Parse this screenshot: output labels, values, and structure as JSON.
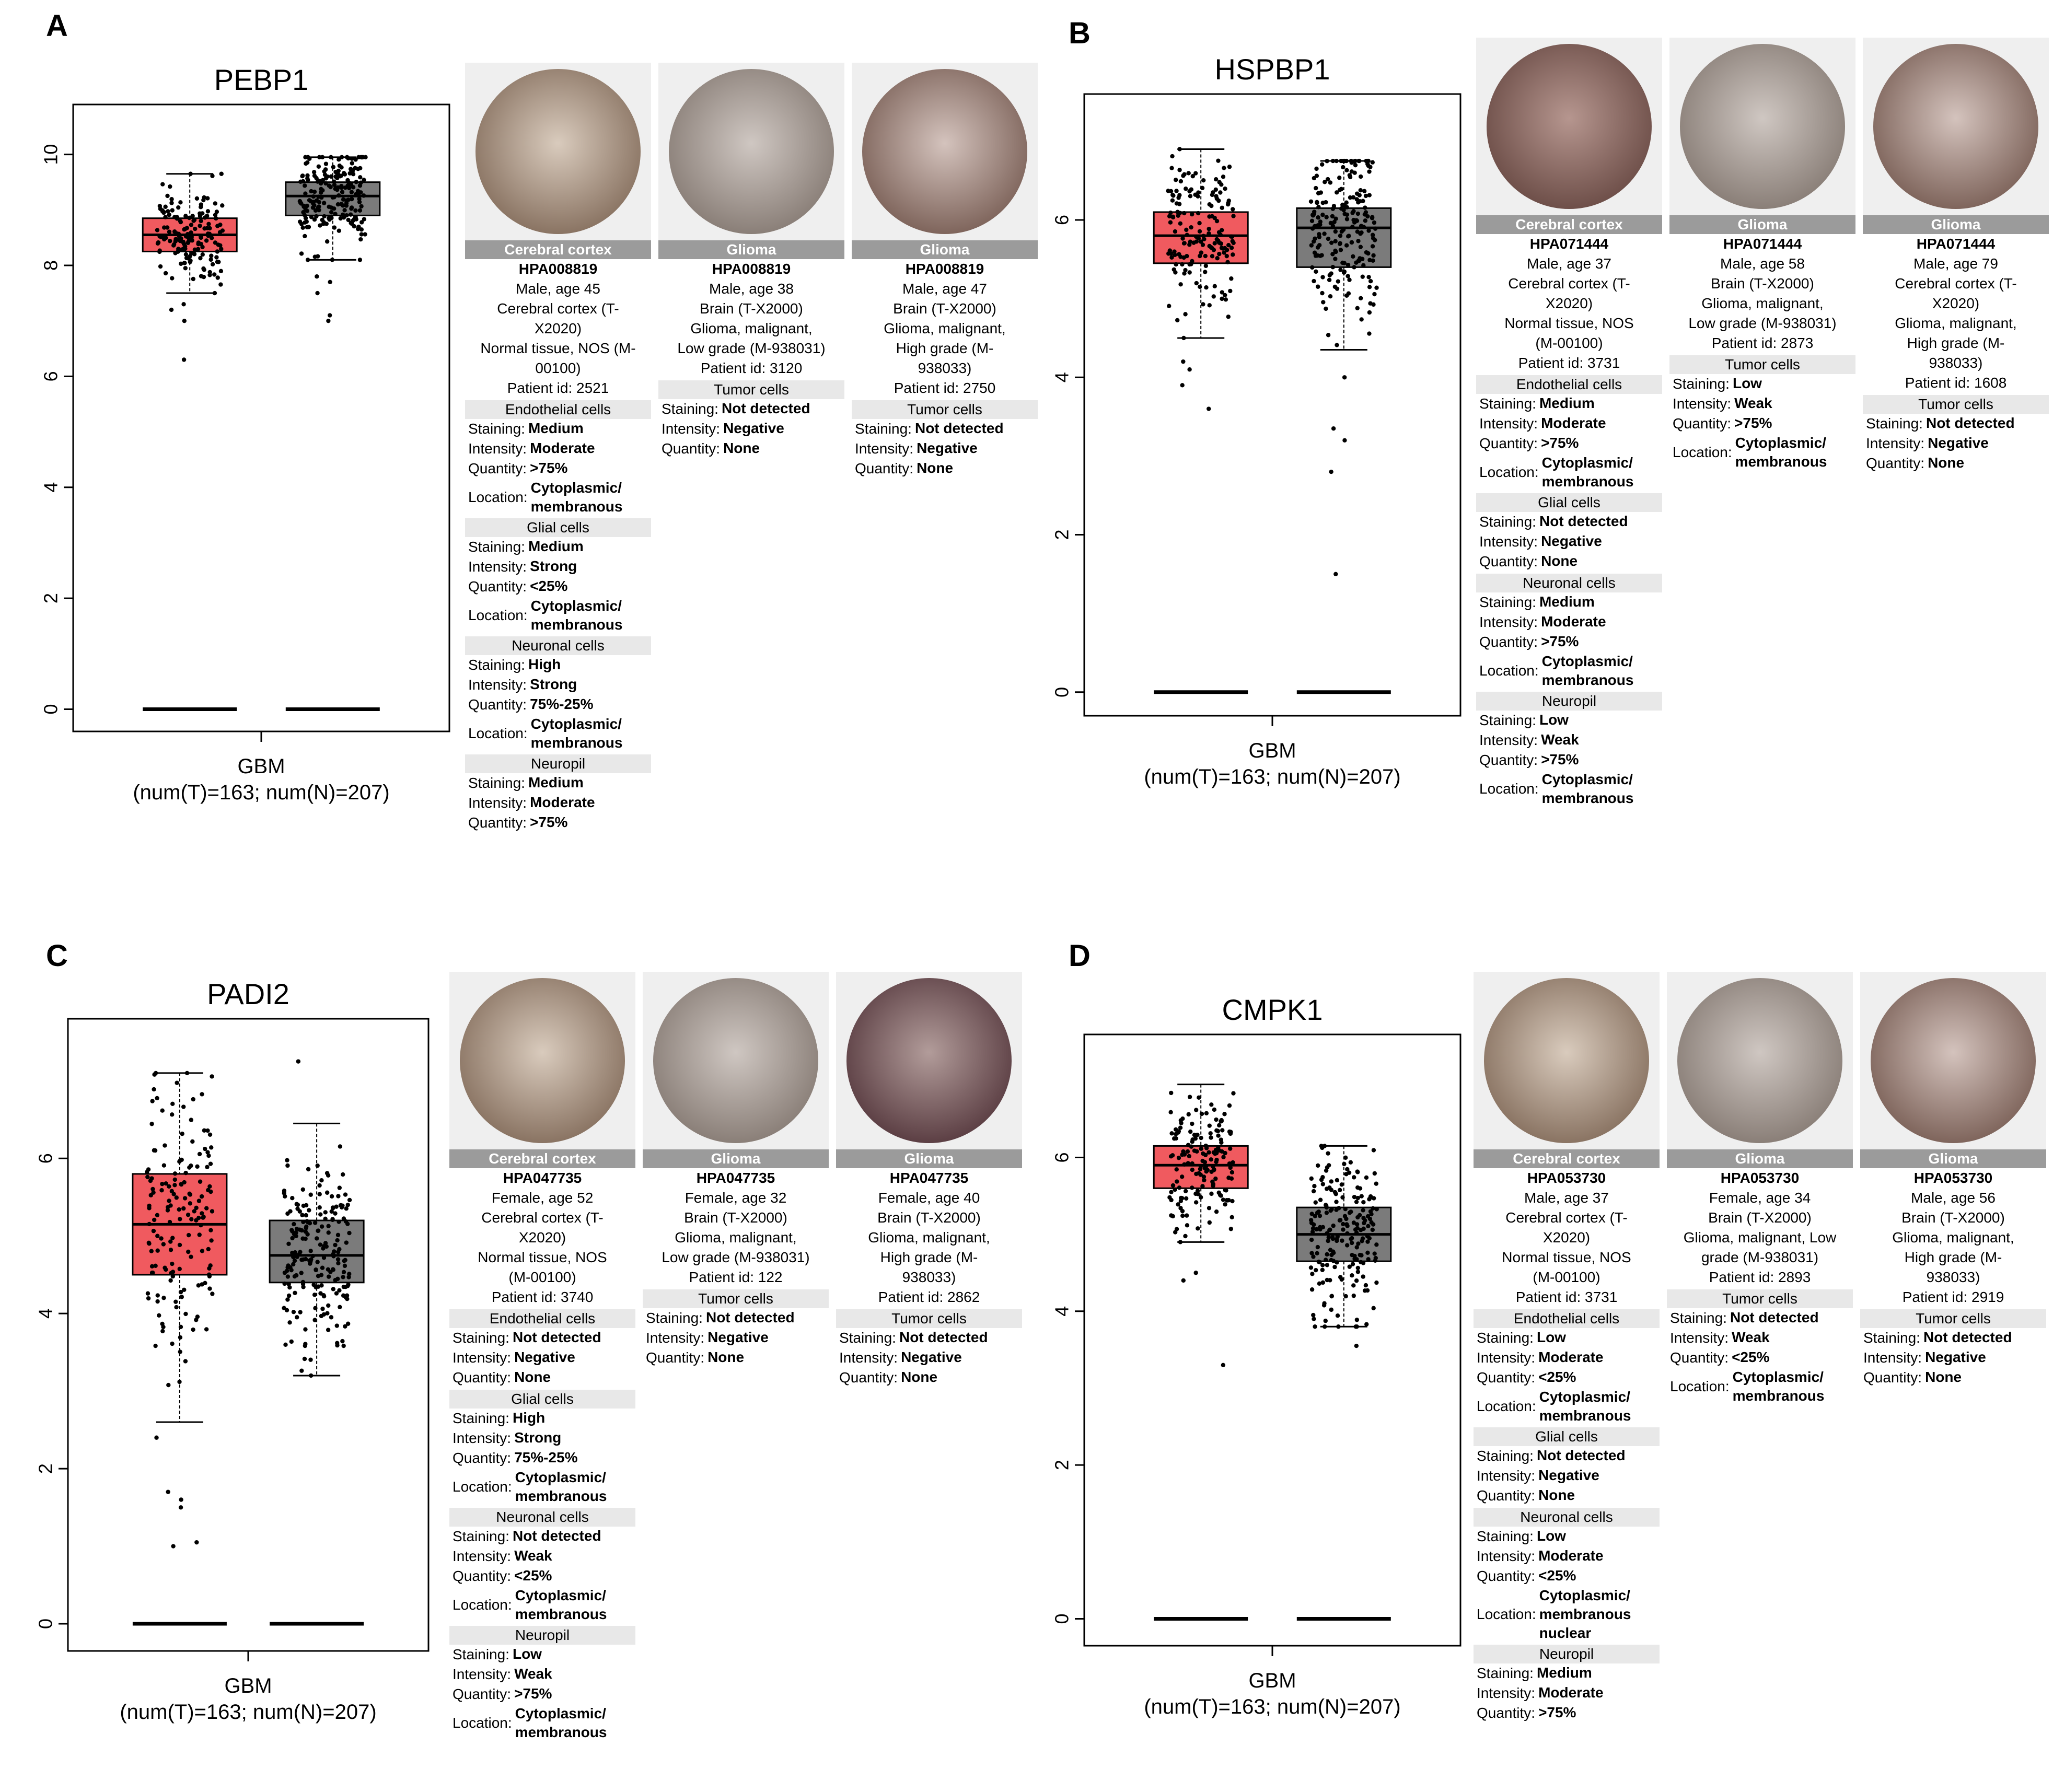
{
  "colors": {
    "tumor_box": "#f05a5f",
    "normal_box": "#7b7b7b",
    "banner": "#9b9b9b"
  },
  "panels": [
    {
      "id": "A",
      "label": "A",
      "gene": "PEBP1",
      "xlabel": "GBM",
      "xsub": "(num(T)=163; num(N)=207)",
      "yticks": [
        "0",
        "2",
        "4",
        "6",
        "8",
        "10"
      ],
      "tissue_images": [
        {
          "tissue": "Cerebral cortex",
          "antibody": "HPA008819",
          "meta": [
            "Male, age 45",
            "Cerebral cortex (T-",
            "X2020)",
            "Normal tissue, NOS (M-",
            "00100)",
            "Patient id: 2521"
          ],
          "cell_groups": [
            {
              "name": "Endothelial cells",
              "rows": [
                [
                  "Staining:",
                  "Medium"
                ],
                [
                  "Intensity:",
                  "Moderate"
                ],
                [
                  "Quantity:",
                  ">75%"
                ],
                [
                  "Location:",
                  "Cytoplasmic/ membranous"
                ]
              ]
            },
            {
              "name": "Glial cells",
              "rows": [
                [
                  "Staining:",
                  "Medium"
                ],
                [
                  "Intensity:",
                  "Strong"
                ],
                [
                  "Quantity:",
                  "<25%"
                ],
                [
                  "Location:",
                  "Cytoplasmic/ membranous"
                ]
              ]
            },
            {
              "name": "Neuronal cells",
              "rows": [
                [
                  "Staining:",
                  "High"
                ],
                [
                  "Intensity:",
                  "Strong"
                ],
                [
                  "Quantity:",
                  "75%-25%"
                ],
                [
                  "Location:",
                  "Cytoplasmic/ membranous"
                ]
              ]
            },
            {
              "name": "Neuropil",
              "rows": [
                [
                  "Staining:",
                  "Medium"
                ],
                [
                  "Intensity:",
                  "Moderate"
                ],
                [
                  "Quantity:",
                  ">75%"
                ]
              ]
            }
          ]
        },
        {
          "tissue": "Glioma",
          "antibody": "HPA008819",
          "meta": [
            "Male, age 38",
            "Brain (T-X2000)",
            "Glioma, malignant,",
            "Low grade (M-938031)",
            "Patient id: 3120"
          ],
          "cell_groups": [
            {
              "name": "Tumor cells",
              "rows": [
                [
                  "Staining:",
                  "Not detected"
                ],
                [
                  "Intensity:",
                  "Negative"
                ],
                [
                  "Quantity:",
                  "None"
                ]
              ]
            }
          ]
        },
        {
          "tissue": "Glioma",
          "antibody": "HPA008819",
          "meta": [
            "Male, age 47",
            "Brain (T-X2000)",
            "Glioma, malignant,",
            "High grade (M-",
            "938033)",
            "Patient id: 2750"
          ],
          "cell_groups": [
            {
              "name": "Tumor cells",
              "rows": [
                [
                  "Staining:",
                  "Not detected"
                ],
                [
                  "Intensity:",
                  "Negative"
                ],
                [
                  "Quantity:",
                  "None"
                ]
              ]
            }
          ]
        }
      ]
    },
    {
      "id": "B",
      "label": "B",
      "gene": "HSPBP1",
      "xlabel": "GBM",
      "xsub": "(num(T)=163; num(N)=207)",
      "yticks": [
        "0",
        "2",
        "4",
        "6"
      ],
      "tissue_images": [
        {
          "tissue": "Cerebral cortex",
          "antibody": "HPA071444",
          "meta": [
            "Male, age 37",
            "Cerebral cortex (T-",
            "X2020)",
            "Normal tissue, NOS",
            "(M-00100)",
            "Patient id: 3731"
          ],
          "cell_groups": [
            {
              "name": "Endothelial cells",
              "rows": [
                [
                  "Staining:",
                  "Medium"
                ],
                [
                  "Intensity:",
                  "Moderate"
                ],
                [
                  "Quantity:",
                  ">75%"
                ],
                [
                  "Location:",
                  "Cytoplasmic/ membranous"
                ]
              ]
            },
            {
              "name": "Glial cells",
              "rows": [
                [
                  "Staining:",
                  "Not detected"
                ],
                [
                  "Intensity:",
                  "Negative"
                ],
                [
                  "Quantity:",
                  "None"
                ]
              ]
            },
            {
              "name": "Neuronal cells",
              "rows": [
                [
                  "Staining:",
                  "Medium"
                ],
                [
                  "Intensity:",
                  "Moderate"
                ],
                [
                  "Quantity:",
                  ">75%"
                ],
                [
                  "Location:",
                  "Cytoplasmic/ membranous"
                ]
              ]
            },
            {
              "name": "Neuropil",
              "rows": [
                [
                  "Staining:",
                  "Low"
                ],
                [
                  "Intensity:",
                  "Weak"
                ],
                [
                  "Quantity:",
                  ">75%"
                ],
                [
                  "Location:",
                  "Cytoplasmic/ membranous"
                ]
              ]
            }
          ]
        },
        {
          "tissue": "Glioma",
          "antibody": "HPA071444",
          "meta": [
            "Male, age 58",
            "Brain (T-X2000)",
            "Glioma, malignant,",
            "Low grade (M-938031)",
            "Patient id: 2873"
          ],
          "cell_groups": [
            {
              "name": "Tumor cells",
              "rows": [
                [
                  "Staining:",
                  "Low"
                ],
                [
                  "Intensity:",
                  "Weak"
                ],
                [
                  "Quantity:",
                  ">75%"
                ],
                [
                  "Location:",
                  "Cytoplasmic/ membranous"
                ]
              ]
            }
          ]
        },
        {
          "tissue": "Glioma",
          "antibody": "HPA071444",
          "meta": [
            "Male, age 79",
            "Cerebral cortex (T-",
            "X2020)",
            "Glioma, malignant,",
            "High grade (M-",
            "938033)",
            "Patient id: 1608"
          ],
          "cell_groups": [
            {
              "name": "Tumor cells",
              "rows": [
                [
                  "Staining:",
                  "Not detected"
                ],
                [
                  "Intensity:",
                  "Negative"
                ],
                [
                  "Quantity:",
                  "None"
                ]
              ]
            }
          ]
        }
      ]
    },
    {
      "id": "C",
      "label": "C",
      "gene": "PADI2",
      "xlabel": "GBM",
      "xsub": "(num(T)=163; num(N)=207)",
      "yticks": [
        "0",
        "2",
        "4",
        "6"
      ],
      "tissue_images": [
        {
          "tissue": "Cerebral cortex",
          "antibody": "HPA047735",
          "meta": [
            "Female, age 52",
            "Cerebral cortex (T-",
            "X2020)",
            "Normal tissue, NOS",
            "(M-00100)",
            "Patient id: 3740"
          ],
          "cell_groups": [
            {
              "name": "Endothelial cells",
              "rows": [
                [
                  "Staining:",
                  "Not detected"
                ],
                [
                  "Intensity:",
                  "Negative"
                ],
                [
                  "Quantity:",
                  "None"
                ]
              ]
            },
            {
              "name": "Glial cells",
              "rows": [
                [
                  "Staining:",
                  "High"
                ],
                [
                  "Intensity:",
                  "Strong"
                ],
                [
                  "Quantity:",
                  "75%-25%"
                ],
                [
                  "Location:",
                  "Cytoplasmic/ membranous"
                ]
              ]
            },
            {
              "name": "Neuronal cells",
              "rows": [
                [
                  "Staining:",
                  "Not detected"
                ],
                [
                  "Intensity:",
                  "Weak"
                ],
                [
                  "Quantity:",
                  "<25%"
                ],
                [
                  "Location:",
                  "Cytoplasmic/ membranous"
                ]
              ]
            },
            {
              "name": "Neuropil",
              "rows": [
                [
                  "Staining:",
                  "Low"
                ],
                [
                  "Intensity:",
                  "Weak"
                ],
                [
                  "Quantity:",
                  ">75%"
                ],
                [
                  "Location:",
                  "Cytoplasmic/ membranous"
                ]
              ]
            }
          ]
        },
        {
          "tissue": "Glioma",
          "antibody": "HPA047735",
          "meta": [
            "Female, age 32",
            "Brain (T-X2000)",
            "Glioma, malignant,",
            "Low grade (M-938031)",
            "Patient id: 122"
          ],
          "cell_groups": [
            {
              "name": "Tumor cells",
              "rows": [
                [
                  "Staining:",
                  "Not detected"
                ],
                [
                  "Intensity:",
                  "Negative"
                ],
                [
                  "Quantity:",
                  "None"
                ]
              ]
            }
          ]
        },
        {
          "tissue": "Glioma",
          "antibody": "HPA047735",
          "meta": [
            "Female, age 40",
            "Brain (T-X2000)",
            "Glioma, malignant,",
            "High grade (M-",
            "938033)",
            "Patient id: 2862"
          ],
          "cell_groups": [
            {
              "name": "Tumor cells",
              "rows": [
                [
                  "Staining:",
                  "Not detected"
                ],
                [
                  "Intensity:",
                  "Negative"
                ],
                [
                  "Quantity:",
                  "None"
                ]
              ]
            }
          ]
        }
      ]
    },
    {
      "id": "D",
      "label": "D",
      "gene": "CMPK1",
      "xlabel": "GBM",
      "xsub": "(num(T)=163; num(N)=207)",
      "yticks": [
        "0",
        "2",
        "4",
        "6"
      ],
      "tissue_images": [
        {
          "tissue": "Cerebral cortex",
          "antibody": "HPA053730",
          "meta": [
            "Male, age 37",
            "Cerebral cortex (T-",
            "X2020)",
            "Normal tissue, NOS",
            "(M-00100)",
            "Patient id: 3731"
          ],
          "cell_groups": [
            {
              "name": "Endothelial cells",
              "rows": [
                [
                  "Staining:",
                  "Low"
                ],
                [
                  "Intensity:",
                  "Moderate"
                ],
                [
                  "Quantity:",
                  "<25%"
                ],
                [
                  "Location:",
                  "Cytoplasmic/ membranous"
                ]
              ]
            },
            {
              "name": "Glial cells",
              "rows": [
                [
                  "Staining:",
                  "Not detected"
                ],
                [
                  "Intensity:",
                  "Negative"
                ],
                [
                  "Quantity:",
                  "None"
                ]
              ]
            },
            {
              "name": "Neuronal cells",
              "rows": [
                [
                  "Staining:",
                  "Low"
                ],
                [
                  "Intensity:",
                  "Moderate"
                ],
                [
                  "Quantity:",
                  "<25%"
                ],
                [
                  "Location:",
                  "Cytoplasmic/ membranous nuclear"
                ]
              ]
            },
            {
              "name": "Neuropil",
              "rows": [
                [
                  "Staining:",
                  "Medium"
                ],
                [
                  "Intensity:",
                  "Moderate"
                ],
                [
                  "Quantity:",
                  ">75%"
                ]
              ]
            }
          ]
        },
        {
          "tissue": "Glioma",
          "antibody": "HPA053730",
          "meta": [
            "Female, age 34",
            "Brain (T-X2000)",
            "Glioma, malignant, Low",
            "grade (M-938031)",
            "Patient id: 2893"
          ],
          "cell_groups": [
            {
              "name": "Tumor cells",
              "rows": [
                [
                  "Staining:",
                  "Not detected"
                ],
                [
                  "Intensity:",
                  "Weak"
                ],
                [
                  "Quantity:",
                  "<25%"
                ],
                [
                  "Location:",
                  "Cytoplasmic/ membranous"
                ]
              ]
            }
          ]
        },
        {
          "tissue": "Glioma",
          "antibody": "HPA053730",
          "meta": [
            "Male, age 56",
            "Brain (T-X2000)",
            "Glioma, malignant,",
            "High grade (M-",
            "938033)",
            "Patient id: 2919"
          ],
          "cell_groups": [
            {
              "name": "Tumor cells",
              "rows": [
                [
                  "Staining:",
                  "Not detected"
                ],
                [
                  "Intensity:",
                  "Negative"
                ],
                [
                  "Quantity:",
                  "None"
                ]
              ]
            }
          ]
        }
      ]
    }
  ],
  "chart_data": [
    {
      "type": "box",
      "title": "PEBP1",
      "xlabel": "GBM",
      "xsub": "(num(T)=163; num(N)=207)",
      "ylim": [
        -0.4,
        10.9
      ],
      "series": [
        {
          "name": "Tumor",
          "n": 163,
          "color": "#f05a5f",
          "q1": 8.25,
          "median": 8.55,
          "q3": 8.85,
          "whisker_low": 7.5,
          "whisker_high": 9.65,
          "outliers": [
            6.3,
            7.0,
            7.2,
            7.3
          ],
          "baseline": 0
        },
        {
          "name": "Normal",
          "n": 207,
          "color": "#7b7b7b",
          "q1": 8.9,
          "median": 9.25,
          "q3": 9.5,
          "whisker_low": 8.1,
          "whisker_high": 9.95,
          "outliers": [
            7.0,
            7.1,
            7.5,
            7.7,
            7.8
          ],
          "baseline": 0
        }
      ]
    },
    {
      "type": "box",
      "title": "HSPBP1",
      "xlabel": "GBM",
      "xsub": "(num(T)=163; num(N)=207)",
      "ylim": [
        -0.3,
        7.6
      ],
      "series": [
        {
          "name": "Tumor",
          "n": 163,
          "color": "#f05a5f",
          "q1": 5.45,
          "median": 5.8,
          "q3": 6.1,
          "whisker_low": 4.5,
          "whisker_high": 6.9,
          "outliers": [
            3.6,
            3.9,
            4.1,
            4.2
          ],
          "baseline": 0
        },
        {
          "name": "Normal",
          "n": 207,
          "color": "#7b7b7b",
          "q1": 5.4,
          "median": 5.9,
          "q3": 6.15,
          "whisker_low": 4.35,
          "whisker_high": 6.75,
          "outliers": [
            1.5,
            2.8,
            3.2,
            3.35,
            4.0
          ],
          "baseline": 0
        }
      ]
    },
    {
      "type": "box",
      "title": "PADI2",
      "xlabel": "GBM",
      "xsub": "(num(T)=163; num(N)=207)",
      "ylim": [
        -0.35,
        7.8
      ],
      "series": [
        {
          "name": "Tumor",
          "n": 163,
          "color": "#f05a5f",
          "q1": 4.5,
          "median": 5.15,
          "q3": 5.8,
          "whisker_low": 2.6,
          "whisker_high": 7.1,
          "outliers": [
            1.0,
            1.05,
            1.5,
            1.6,
            1.7,
            2.4
          ],
          "baseline": 0
        },
        {
          "name": "Normal",
          "n": 207,
          "color": "#7b7b7b",
          "q1": 4.4,
          "median": 4.75,
          "q3": 5.2,
          "whisker_low": 3.2,
          "whisker_high": 6.45,
          "outliers": [
            7.25
          ],
          "baseline": 0
        }
      ]
    },
    {
      "type": "box",
      "title": "CMPK1",
      "xlabel": "GBM",
      "xsub": "(num(T)=163; num(N)=207)",
      "ylim": [
        -0.35,
        7.6
      ],
      "series": [
        {
          "name": "Tumor",
          "n": 163,
          "color": "#f05a5f",
          "q1": 5.6,
          "median": 5.9,
          "q3": 6.15,
          "whisker_low": 4.9,
          "whisker_high": 6.95,
          "outliers": [
            3.3,
            4.4,
            4.5
          ],
          "baseline": 0
        },
        {
          "name": "Normal",
          "n": 207,
          "color": "#7b7b7b",
          "q1": 4.65,
          "median": 5.0,
          "q3": 5.35,
          "whisker_low": 3.8,
          "whisker_high": 6.15,
          "outliers": [
            3.55
          ],
          "baseline": 0
        }
      ]
    }
  ]
}
